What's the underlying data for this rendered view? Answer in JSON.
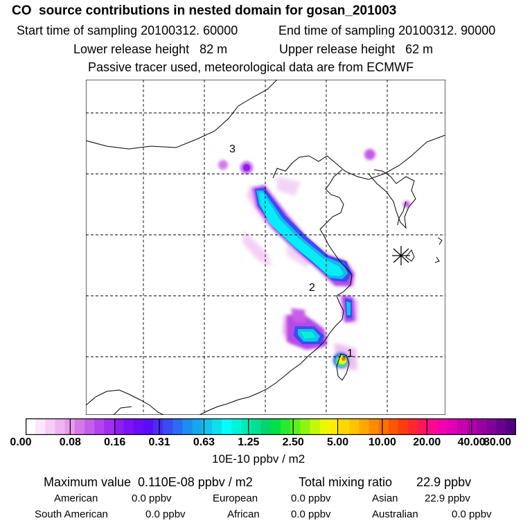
{
  "header": {
    "title": "CO  source contributions in nested domain for gosan_201003",
    "start_time": "Start time of sampling 20100312. 60000",
    "end_time": "End time of sampling 20100312. 90000",
    "lower_release": "Lower release height   82 m",
    "upper_release": "Upper release height   62 m",
    "tracer_note": "Passive tracer used, meteorological data are from ECMWF"
  },
  "map": {
    "labels": [
      "3",
      "2",
      "1"
    ],
    "receptor_marker": "star-icon"
  },
  "colorbar": {
    "ticks": [
      "0.00",
      "0.08",
      "0.16",
      "0.31",
      "0.63",
      "1.25",
      "2.50",
      "5.00",
      "10.00",
      "20.00",
      "40.00",
      "80.00"
    ],
    "units": "10E-10 ppbv / m2",
    "colors": [
      "#ffffff",
      "#fbe6fb",
      "#f5cdf5",
      "#efb4ef",
      "#e89ae8",
      "#d37ae8",
      "#c35fec",
      "#b244f0",
      "#a02ff0",
      "#8c1ef2",
      "#7a14f4",
      "#6a0cf6",
      "#5a0cf8",
      "#4a2cf6",
      "#3b4cf4",
      "#2c6cf2",
      "#1e8cf0",
      "#14a8ee",
      "#10c4ec",
      "#0ce0ea",
      "#00ffff",
      "#00f4d8",
      "#00eab4",
      "#00e090",
      "#00d66c",
      "#00e048",
      "#28e830",
      "#5cf020",
      "#90f410",
      "#c4f808",
      "#ecf800",
      "#ffec00",
      "#ffd800",
      "#ffc400",
      "#ffa800",
      "#ff8c00",
      "#ff7000",
      "#ff5400",
      "#ff3c10",
      "#ff2830",
      "#ff1460",
      "#ff0890",
      "#f400b0",
      "#e000b8",
      "#c800b0",
      "#b000a8",
      "#9800a0",
      "#800098",
      "#680090",
      "#500080"
    ]
  },
  "summary": {
    "max_value": "Maximum value  0.110E-08 ppbv / m2",
    "total_mixing": "Total mixing ratio       22.9 ppbv",
    "regions": [
      {
        "name": "American",
        "value": "0.0 ppbv"
      },
      {
        "name": "European",
        "value": "0.0 ppbv"
      },
      {
        "name": "Asian",
        "value": "22.9 ppbv"
      },
      {
        "name": "South American",
        "value": "0.0 ppbv"
      },
      {
        "name": "African",
        "value": "0.0 ppbv"
      },
      {
        "name": "Australian",
        "value": "0.0 ppbv"
      }
    ]
  }
}
